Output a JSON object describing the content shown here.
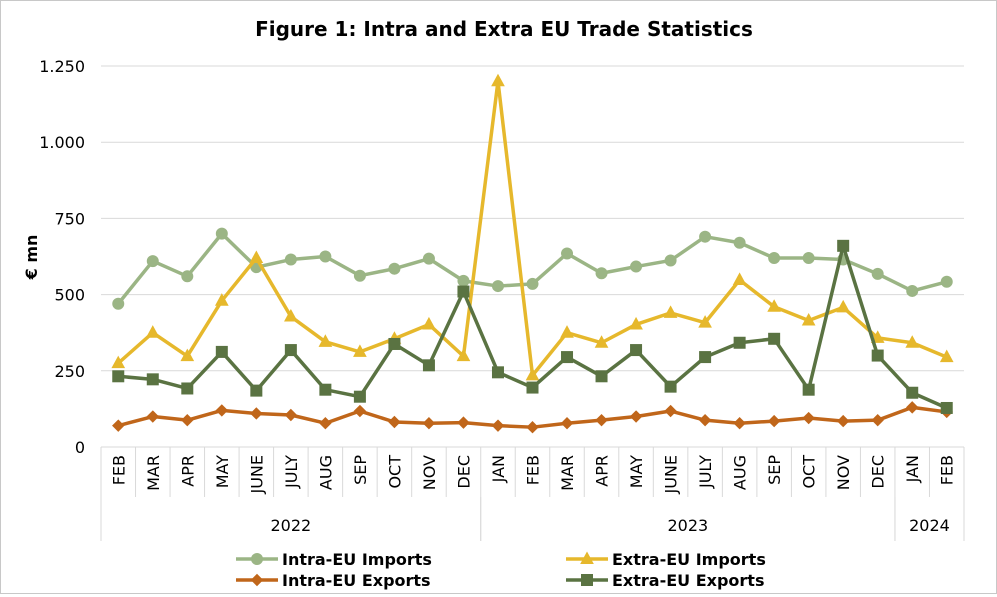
{
  "chart_data": {
    "type": "line",
    "title": "Figure 1: Intra and Extra EU Trade Statistics",
    "xlabel": "",
    "ylabel": "€ mn",
    "ylim": [
      0,
      1250
    ],
    "yticks": [
      0,
      250,
      500,
      750,
      1000,
      1250
    ],
    "ytick_labels": [
      "0",
      "250",
      "500",
      "750",
      "1.000",
      "1.250"
    ],
    "grid": "horizontal",
    "legend_position": "bottom",
    "categories": [
      "FEB",
      "MAR",
      "APR",
      "MAY",
      "JUNE",
      "JULY",
      "AUG",
      "SEP",
      "OCT",
      "NOV",
      "DEC",
      "JAN",
      "FEB",
      "MAR",
      "APR",
      "MAY",
      "JUNE",
      "JULY",
      "AUG",
      "SEP",
      "OCT",
      "NOV",
      "DEC",
      "JAN",
      "FEB"
    ],
    "year_groups": [
      {
        "label": "2022",
        "start": 0,
        "end": 10
      },
      {
        "label": "2023",
        "start": 11,
        "end": 22
      },
      {
        "label": "2024",
        "start": 23,
        "end": 24
      }
    ],
    "series": [
      {
        "name": "Intra-EU Imports",
        "color": "#9bb585",
        "marker": "circle",
        "values": [
          470,
          610,
          560,
          700,
          590,
          615,
          625,
          562,
          585,
          618,
          545,
          528,
          535,
          635,
          570,
          592,
          612,
          690,
          670,
          620,
          620,
          615,
          568,
          512,
          542
        ]
      },
      {
        "name": "Extra-EU Imports",
        "color": "#e6b82c",
        "marker": "triangle",
        "values": [
          275,
          375,
          298,
          480,
          620,
          428,
          345,
          312,
          355,
          402,
          298,
          1200,
          235,
          375,
          342,
          402,
          440,
          408,
          548,
          460,
          415,
          458,
          358,
          342,
          295
        ]
      },
      {
        "name": "Intra-EU Exports",
        "color": "#c0661a",
        "marker": "diamond",
        "values": [
          70,
          100,
          88,
          120,
          110,
          105,
          78,
          118,
          82,
          78,
          80,
          70,
          65,
          78,
          88,
          100,
          118,
          88,
          78,
          85,
          95,
          85,
          88,
          130,
          115
        ]
      },
      {
        "name": "Extra-EU Exports",
        "color": "#5a7342",
        "marker": "square",
        "values": [
          232,
          222,
          192,
          312,
          185,
          318,
          188,
          165,
          338,
          268,
          510,
          245,
          195,
          295,
          232,
          318,
          198,
          295,
          342,
          355,
          188,
          660,
          300,
          178,
          128
        ]
      }
    ]
  }
}
